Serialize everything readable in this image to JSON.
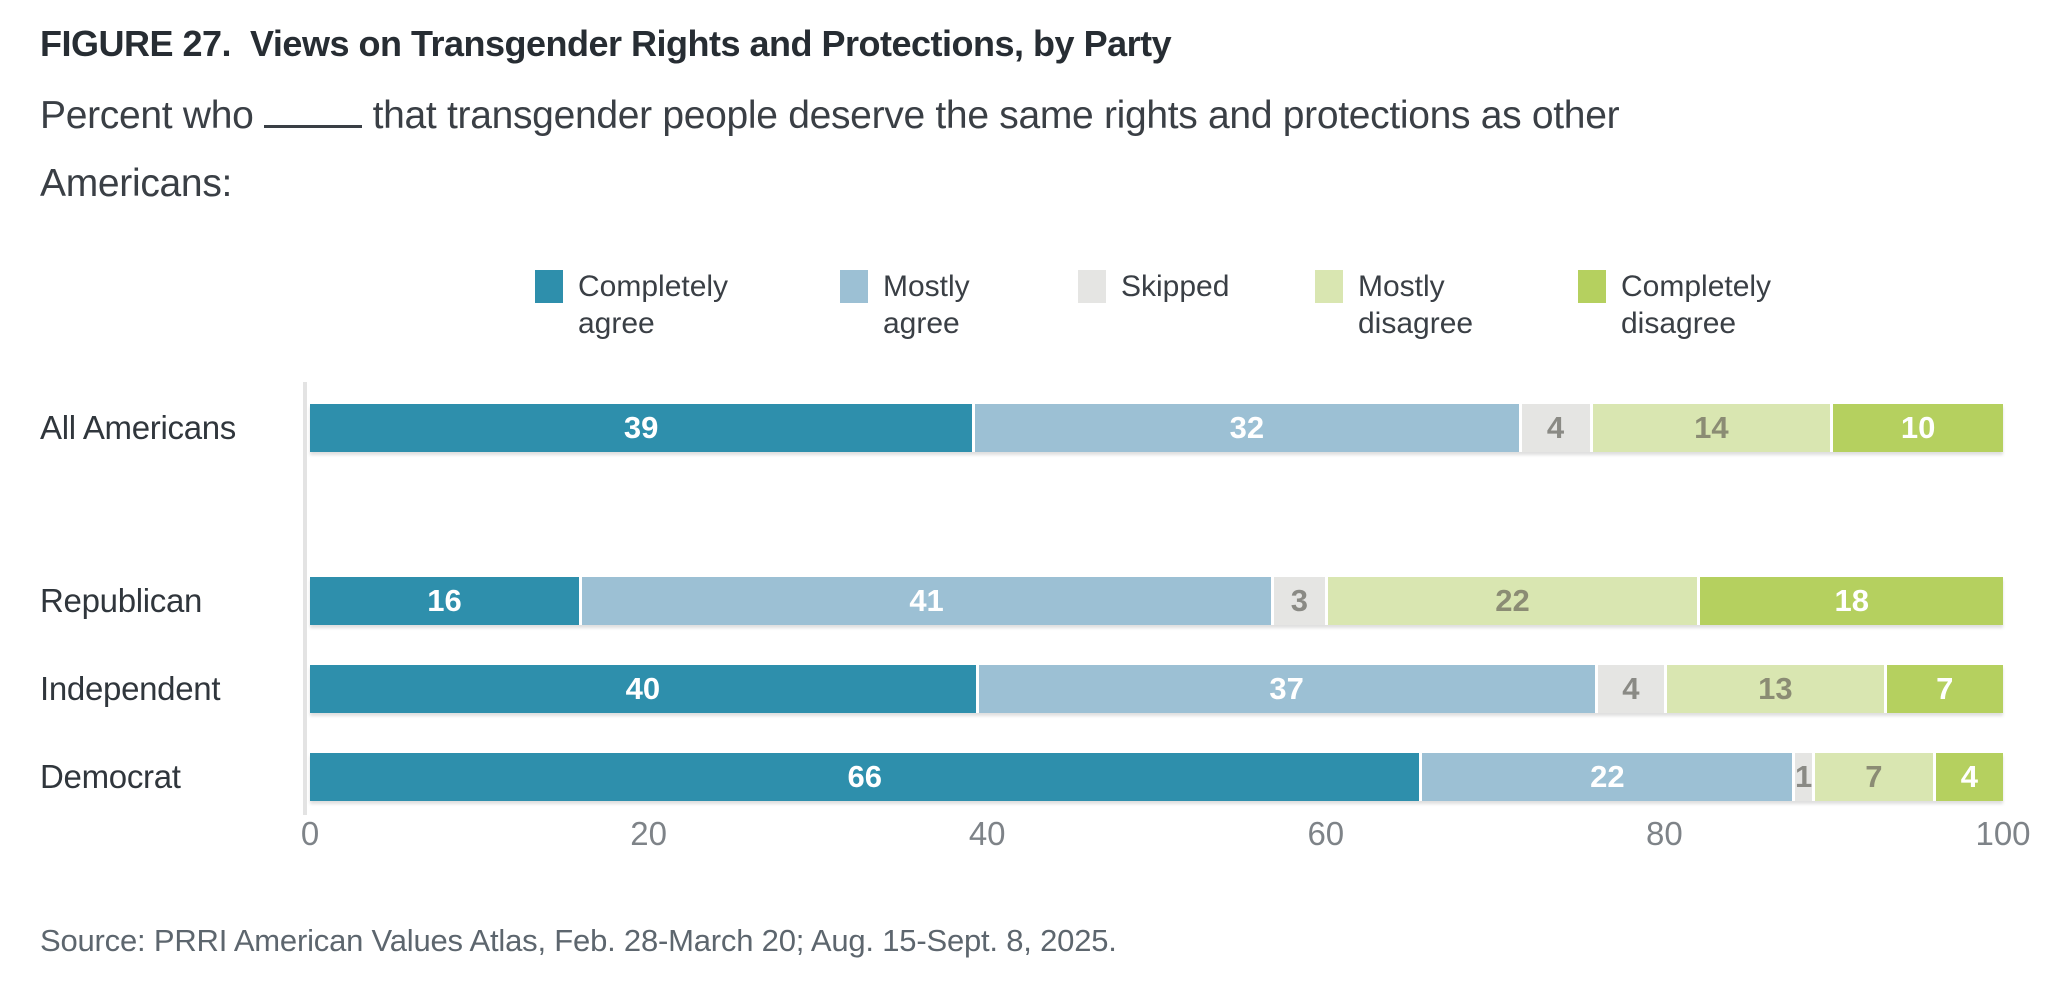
{
  "figure": {
    "title": "FIGURE 27.  Views on Transgender Rights and Protections, by Party",
    "prompt_prefix": "Percent who",
    "prompt_suffix": "that transgender people deserve the same rights and protections as other Americans:",
    "source": "Source: PRRI American Values Atlas, Feb. 28-March 20; Aug. 15-Sept. 8, 2025."
  },
  "chart_data": {
    "type": "bar",
    "orientation": "horizontal",
    "stacked": true,
    "legend_position": "top",
    "grid": false,
    "title": "FIGURE 27. Views on Transgender Rights and Protections, by Party",
    "subtitle": "Percent who ______ that transgender people deserve the same rights and protections as other Americans:",
    "categories": [
      "All Americans",
      "Republican",
      "Independent",
      "Democrat"
    ],
    "series": [
      {
        "name": "Completely agree",
        "legend_lines": [
          "Completely",
          "agree"
        ],
        "color": "#2E8FAC",
        "value_label_color": "#FFFFFF",
        "values": [
          39,
          16,
          40,
          66
        ]
      },
      {
        "name": "Mostly agree",
        "legend_lines": [
          "Mostly",
          "agree"
        ],
        "color": "#9CC0D4",
        "value_label_color": "#FFFFFF",
        "values": [
          32,
          41,
          37,
          22
        ]
      },
      {
        "name": "Skipped",
        "legend_lines": [
          "Skipped"
        ],
        "color": "#E5E5E3",
        "value_label_color": "#8A8A85",
        "values": [
          4,
          3,
          4,
          1
        ]
      },
      {
        "name": "Mostly disagree",
        "legend_lines": [
          "Mostly",
          "disagree"
        ],
        "color": "#D9E6B1",
        "value_label_color": "#8B8C74",
        "values": [
          14,
          22,
          13,
          7
        ]
      },
      {
        "name": "Completely disagree",
        "legend_lines": [
          "Completely",
          "disagree"
        ],
        "color": "#B5D05F",
        "value_label_color": "#FFFFFF",
        "values": [
          10,
          18,
          7,
          4
        ]
      }
    ],
    "x_axis": {
      "ticks": [
        "0",
        "20",
        "40",
        "60",
        "80",
        "100"
      ],
      "range": [
        0,
        100
      ]
    },
    "axis_line_color": "#E3E3E3"
  }
}
